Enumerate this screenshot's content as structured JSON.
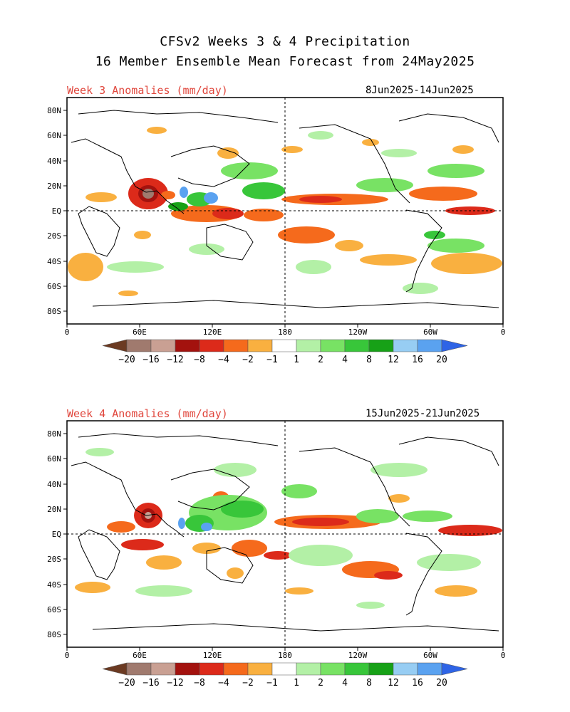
{
  "title_line1": "CFSv2 Weeks 3 & 4 Precipitation",
  "title_line2": "16 Member Ensemble Mean Forecast from 24May2025",
  "panels": [
    {
      "label": "Week 3 Anomalies (mm/day)",
      "dates": "8Jun2025-14Jun2025"
    },
    {
      "label": "Week 4 Anomalies (mm/day)",
      "dates": "15Jun2025-21Jun2025"
    }
  ],
  "lat_ticks": [
    "80N",
    "60N",
    "40N",
    "20N",
    "EQ",
    "20S",
    "40S",
    "60S",
    "80S"
  ],
  "lon_ticks": [
    "0",
    "60E",
    "120E",
    "180",
    "120W",
    "60W",
    "0"
  ],
  "colorbar": {
    "labels": [
      "-20",
      "-16",
      "-12",
      "-8",
      "-4",
      "-2",
      "-1",
      "1",
      "2",
      "4",
      "8",
      "12",
      "16",
      "20"
    ],
    "colors": {
      "lt_m20": "#6b3a22",
      "m20_m16": "#a07a6e",
      "m16_m12": "#c9a093",
      "m12_m8": "#a3120e",
      "m8_m4": "#dc2a1a",
      "m4_m2": "#f56a1c",
      "m2_m1": "#f9b040",
      "m1_p1": "#ffffff",
      "p1_p2": "#b3f0a6",
      "p2_p4": "#78e264",
      "p4_p8": "#38c63a",
      "p8_p12": "#17a117",
      "p12_p16": "#97cdf3",
      "p16_p20": "#5aa2f0",
      "gt_p20": "#2e64e6"
    }
  }
}
